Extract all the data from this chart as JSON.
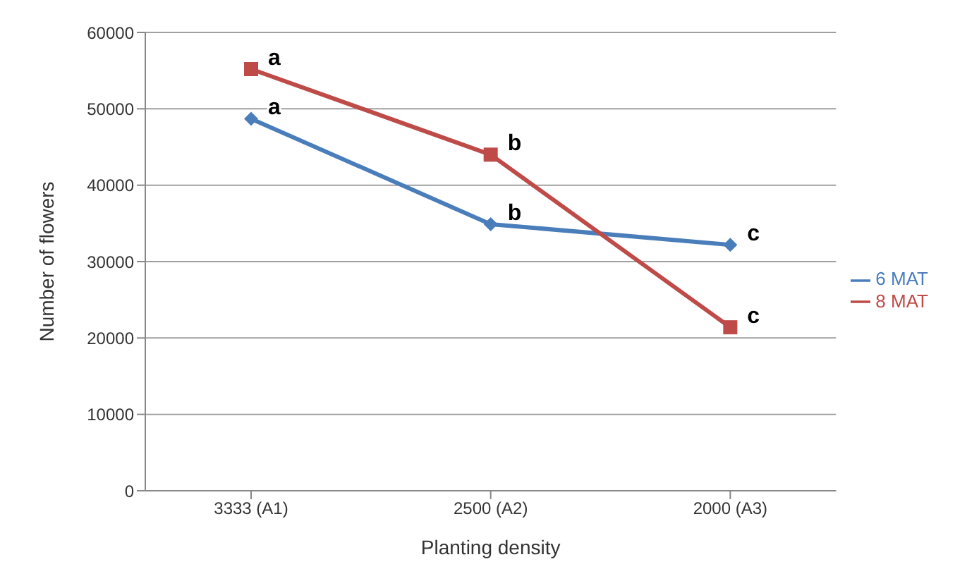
{
  "chart_data": {
    "type": "line",
    "xlabel": "Planting density",
    "ylabel": "Number of flowers",
    "categories": [
      "3333 (A1)",
      "2500 (A2)",
      "2000 (A3)"
    ],
    "series": [
      {
        "name": "6 MAT",
        "color": "#4a7ebb",
        "marker": "diamond",
        "values": [
          48700,
          34900,
          32200
        ]
      },
      {
        "name": "8 MAT",
        "color": "#be4b48",
        "marker": "square",
        "values": [
          55200,
          44000,
          21400
        ]
      }
    ],
    "ylim": [
      0,
      60000
    ],
    "yticks": [
      0,
      10000,
      20000,
      30000,
      40000,
      50000,
      60000
    ],
    "grid": "y",
    "legend": "right",
    "annotations": [
      {
        "text": "a",
        "x": "3333 (A1)",
        "y": 55200
      },
      {
        "text": "a",
        "x": "3333 (A1)",
        "y": 48700
      },
      {
        "text": "b",
        "x": "2500 (A2)",
        "y": 44000
      },
      {
        "text": "b",
        "x": "2500 (A2)",
        "y": 34900
      },
      {
        "text": "c",
        "x": "2000 (A3)",
        "y": 32200
      },
      {
        "text": "c",
        "x": "2000 (A3)",
        "y": 21400
      }
    ]
  }
}
